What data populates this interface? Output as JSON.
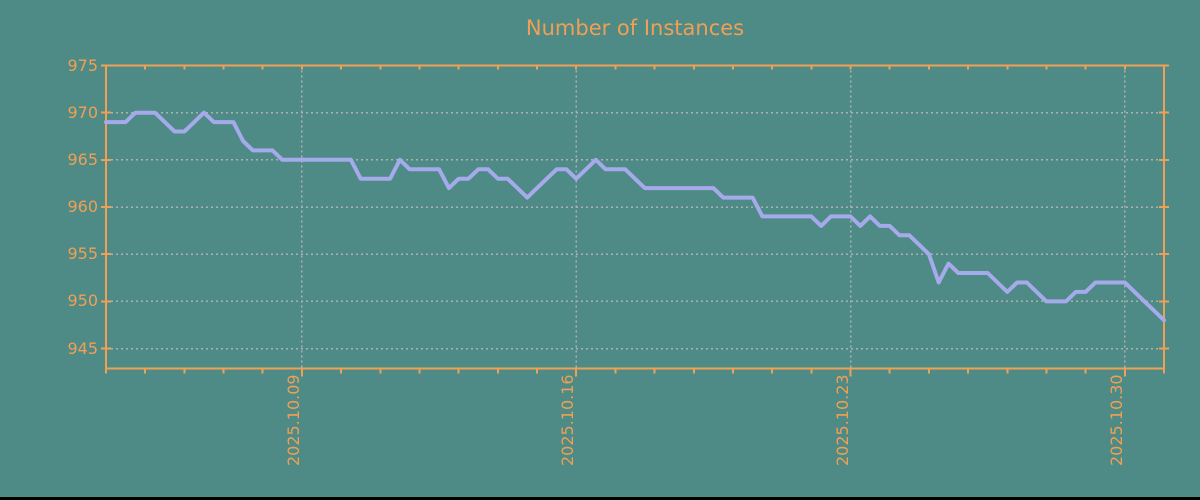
{
  "chart_data": {
    "type": "line",
    "title": "Number of Instances",
    "series": [
      {
        "name": "instances",
        "values": [
          969,
          969,
          969,
          970,
          970,
          970,
          969,
          968,
          968,
          969,
          970,
          969,
          969,
          969,
          967,
          966,
          966,
          966,
          965,
          965,
          965,
          965,
          965,
          965,
          965,
          965,
          963,
          963,
          963,
          963,
          965,
          964,
          964,
          964,
          964,
          962,
          963,
          963,
          964,
          964,
          963,
          963,
          962,
          961,
          962,
          963,
          964,
          964,
          963,
          964,
          965,
          964,
          964,
          964,
          963,
          962,
          962,
          962,
          962,
          962,
          962,
          962,
          962,
          961,
          961,
          961,
          961,
          959,
          959,
          959,
          959,
          959,
          959,
          958,
          959,
          959,
          959,
          958,
          959,
          958,
          958,
          957,
          957,
          956,
          955,
          952,
          954,
          953,
          953,
          953,
          953,
          952,
          951,
          952,
          952,
          951,
          950,
          950,
          950,
          951,
          951,
          952,
          952,
          952,
          952,
          951,
          950,
          949,
          948
        ]
      }
    ],
    "x_axis": {
      "tick_labels": [
        "2025.10.09",
        "2025.10.16",
        "2025.10.23",
        "2025.10.30"
      ]
    },
    "y_axis": {
      "tick_labels": [
        "975",
        "970",
        "965",
        "960",
        "955",
        "950",
        "945"
      ],
      "min": 943,
      "max": 975
    },
    "grid": "dashed",
    "legend": "none",
    "colors": {
      "background": "#4e8a86",
      "axis": "#f0a055",
      "line": "#a5aaeb",
      "grid": "#b0b0b0",
      "bottom_bar": "#000000"
    }
  }
}
